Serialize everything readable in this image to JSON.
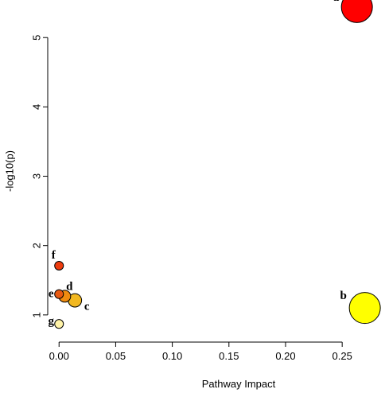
{
  "chart_data": {
    "type": "scatter",
    "xlabel": "Pathway Impact",
    "ylabel": "-log10(p)",
    "xlim": [
      -0.01,
      0.285
    ],
    "ylim": [
      0.7,
      5.45
    ],
    "x_ticks": [
      0.0,
      0.05,
      0.1,
      0.15,
      0.2,
      0.25
    ],
    "x_tick_labels": [
      "0.00",
      "0.05",
      "0.10",
      "0.15",
      "0.20",
      "0.25"
    ],
    "y_ticks": [
      1,
      2,
      3,
      4,
      5
    ],
    "y_tick_labels": [
      "1",
      "2",
      "3",
      "4",
      "5"
    ],
    "grid": false,
    "points": [
      {
        "label": "a",
        "x": 0.263,
        "y": 5.44,
        "color": "#ff0000",
        "size": 3.0
      },
      {
        "label": "b",
        "x": 0.27,
        "y": 1.1,
        "color": "#ffff00",
        "size": 3.0
      },
      {
        "label": "c",
        "x": 0.014,
        "y": 1.21,
        "color": "#f2b820",
        "size": 1.3
      },
      {
        "label": "d",
        "x": 0.005,
        "y": 1.27,
        "color": "#ef8c10",
        "size": 1.15
      },
      {
        "label": "e",
        "x": 0.0,
        "y": 1.3,
        "color": "#e85a12",
        "size": 0.85
      },
      {
        "label": "f",
        "x": 0.0,
        "y": 1.71,
        "color": "#ee3c0e",
        "size": 0.85
      },
      {
        "label": "g",
        "x": 0.0,
        "y": 0.87,
        "color": "#fff3a8",
        "size": 0.85
      }
    ]
  }
}
